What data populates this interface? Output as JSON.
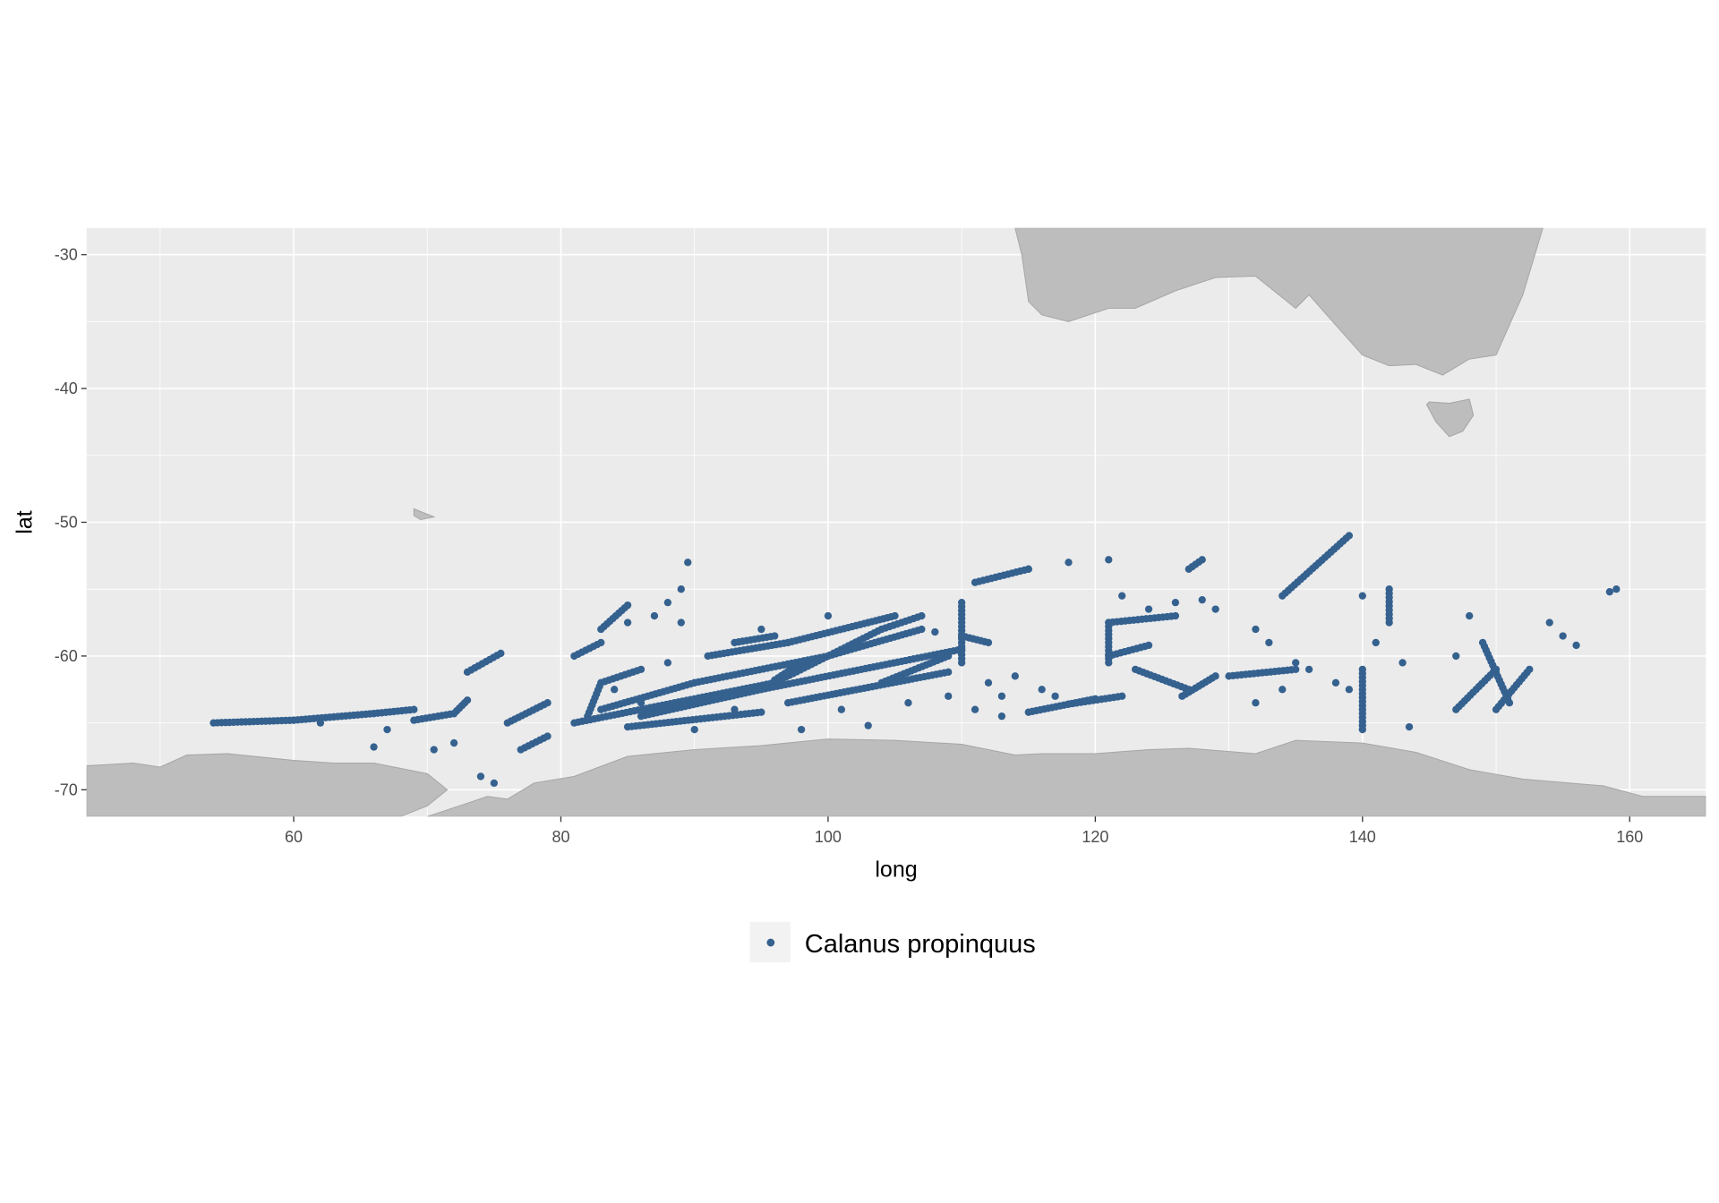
{
  "chart_data": {
    "type": "scatter",
    "xlabel": "long",
    "ylabel": "lat",
    "xlim": [
      44.5,
      165.7
    ],
    "ylim": [
      -72,
      -28
    ],
    "x_ticks": [
      60,
      80,
      100,
      120,
      140,
      160
    ],
    "y_ticks": [
      -30,
      -40,
      -50,
      -60,
      -70
    ],
    "x_tick_labels": [
      "60",
      "80",
      "100",
      "120",
      "140",
      "160"
    ],
    "y_tick_labels": [
      "-30",
      "-40",
      "-50",
      "-60",
      "-70"
    ],
    "grid": true,
    "panel_background": "#ebebeb",
    "land_color": "#bdbdbd",
    "land_outline": "#a6a6a6",
    "legend_position": "bottom",
    "series": [
      {
        "name": "Calanus propinquus",
        "color": "#35618f",
        "tracks": [
          [
            [
              54,
              -65.0
            ],
            [
              60,
              -64.8
            ],
            [
              66,
              -64.3
            ],
            [
              69,
              -64.0
            ]
          ],
          [
            [
              69,
              -64.8
            ],
            [
              72,
              -64.3
            ],
            [
              73,
              -63.3
            ]
          ],
          [
            [
              73,
              -61.2
            ],
            [
              75.5,
              -59.8
            ]
          ],
          [
            [
              76,
              -65.0
            ],
            [
              79,
              -63.5
            ]
          ],
          [
            [
              77,
              -67.0
            ],
            [
              79,
              -66.0
            ]
          ],
          [
            [
              81,
              -65.0
            ],
            [
              96,
              -62.0
            ],
            [
              104,
              -58.0
            ],
            [
              107,
              -57.0
            ]
          ],
          [
            [
              82,
              -64.5
            ],
            [
              83,
              -62.0
            ],
            [
              86,
              -61.0
            ]
          ],
          [
            [
              83,
              -64.0
            ],
            [
              90,
              -62.0
            ],
            [
              100,
              -60.0
            ],
            [
              107,
              -58.0
            ]
          ],
          [
            [
              85,
              -65.3
            ],
            [
              95,
              -64.2
            ]
          ],
          [
            [
              86,
              -64.5
            ],
            [
              95,
              -62.5
            ],
            [
              110,
              -59.5
            ]
          ],
          [
            [
              91,
              -60.0
            ],
            [
              97,
              -59.0
            ],
            [
              103,
              -57.5
            ],
            [
              105,
              -57.0
            ]
          ],
          [
            [
              96,
              -61.8
            ],
            [
              98,
              -60.5
            ]
          ],
          [
            [
              97,
              -63.5
            ],
            [
              109,
              -61.2
            ]
          ],
          [
            [
              104,
              -62.0
            ],
            [
              109,
              -60.0
            ]
          ],
          [
            [
              83,
              -58.0
            ],
            [
              85,
              -56.2
            ]
          ],
          [
            [
              81,
              -60.0
            ],
            [
              83,
              -59.0
            ]
          ],
          [
            [
              93,
              -59.0
            ],
            [
              96,
              -58.5
            ]
          ],
          [
            [
              110,
              -56.0
            ],
            [
              110,
              -60.5
            ]
          ],
          [
            [
              110,
              -58.5
            ],
            [
              112,
              -59.0
            ]
          ],
          [
            [
              111,
              -54.5
            ],
            [
              115,
              -53.5
            ]
          ],
          [
            [
              115,
              -64.2
            ],
            [
              120,
              -63.2
            ]
          ],
          [
            [
              118,
              -63.6
            ],
            [
              122,
              -63.0
            ]
          ],
          [
            [
              121,
              -60.5
            ],
            [
              121,
              -57.5
            ],
            [
              126,
              -57.0
            ]
          ],
          [
            [
              123,
              -61.0
            ],
            [
              127,
              -62.5
            ]
          ],
          [
            [
              121,
              -60.0
            ],
            [
              124,
              -59.2
            ]
          ],
          [
            [
              126.5,
              -63.0
            ],
            [
              129,
              -61.5
            ]
          ],
          [
            [
              127,
              -53.5
            ],
            [
              128,
              -52.8
            ]
          ],
          [
            [
              134,
              -55.5
            ],
            [
              139,
              -51.0
            ]
          ],
          [
            [
              140,
              -61.0
            ],
            [
              140,
              -65.5
            ]
          ],
          [
            [
              142,
              -55.0
            ],
            [
              142,
              -57.5
            ]
          ],
          [
            [
              147,
              -64.0
            ],
            [
              150,
              -61.0
            ]
          ],
          [
            [
              149,
              -59.0
            ],
            [
              151,
              -63.5
            ]
          ],
          [
            [
              150,
              -64.0
            ],
            [
              152.5,
              -61.0
            ]
          ],
          [
            [
              130,
              -61.5
            ],
            [
              135,
              -61.0
            ]
          ]
        ],
        "points": [
          [
            67,
            -65.5
          ],
          [
            70.5,
            -67.0
          ],
          [
            74,
            -69.0
          ],
          [
            75,
            -69.5
          ],
          [
            85,
            -57.5
          ],
          [
            87,
            -57.0
          ],
          [
            88,
            -56.0
          ],
          [
            89.5,
            -53.0
          ],
          [
            89,
            -55.0
          ],
          [
            89,
            -57.5
          ],
          [
            95,
            -58.0
          ],
          [
            100,
            -57.0
          ],
          [
            108,
            -58.2
          ],
          [
            115,
            -53.5
          ],
          [
            118,
            -53.0
          ],
          [
            122,
            -55.5
          ],
          [
            124,
            -56.5
          ],
          [
            126,
            -56.0
          ],
          [
            129,
            -56.5
          ],
          [
            132,
            -58.0
          ],
          [
            133,
            -59.0
          ],
          [
            135,
            -60.5
          ],
          [
            136,
            -61.0
          ],
          [
            138,
            -62.0
          ],
          [
            132,
            -63.5
          ],
          [
            134,
            -62.5
          ],
          [
            112,
            -62.0
          ],
          [
            114,
            -61.5
          ],
          [
            113,
            -63.0
          ],
          [
            116,
            -62.5
          ],
          [
            101,
            -64.0
          ],
          [
            103,
            -65.2
          ],
          [
            106,
            -63.5
          ],
          [
            98,
            -65.5
          ],
          [
            93,
            -64.0
          ],
          [
            88,
            -60.5
          ],
          [
            86,
            -63.5
          ],
          [
            84,
            -62.5
          ],
          [
            90,
            -65.5
          ],
          [
            72,
            -66.5
          ],
          [
            66,
            -66.8
          ],
          [
            62,
            -65.0
          ],
          [
            143.5,
            -65.3
          ],
          [
            139,
            -62.5
          ],
          [
            141,
            -59.0
          ],
          [
            143,
            -60.5
          ],
          [
            140,
            -55.5
          ],
          [
            148,
            -57.0
          ],
          [
            147,
            -60.0
          ],
          [
            154,
            -57.5
          ],
          [
            155,
            -58.5
          ],
          [
            156,
            -59.2
          ],
          [
            159,
            -55.0
          ],
          [
            158.5,
            -55.2
          ],
          [
            121,
            -52.8
          ],
          [
            128,
            -55.8
          ],
          [
            117,
            -63.0
          ],
          [
            113,
            -64.5
          ],
          [
            111,
            -64.0
          ],
          [
            109,
            -63.0
          ]
        ]
      }
    ],
    "land": [
      [
        [
          44.5,
          -72
        ],
        [
          44.5,
          -68.2
        ],
        [
          48,
          -68
        ],
        [
          50,
          -68.3
        ],
        [
          52,
          -67.4
        ],
        [
          55,
          -67.3
        ],
        [
          60,
          -67.8
        ],
        [
          63,
          -68.0
        ],
        [
          66,
          -68.0
        ],
        [
          70,
          -68.8
        ],
        [
          71.5,
          -70.0
        ],
        [
          70,
          -71.2
        ],
        [
          68,
          -72
        ]
      ],
      [
        [
          70,
          -72
        ],
        [
          73,
          -71.0
        ],
        [
          74.5,
          -70.5
        ],
        [
          76,
          -70.7
        ],
        [
          78,
          -69.5
        ],
        [
          81,
          -69.0
        ],
        [
          85,
          -67.5
        ],
        [
          90,
          -67.0
        ],
        [
          95,
          -66.7
        ],
        [
          100,
          -66.2
        ],
        [
          105,
          -66.3
        ],
        [
          110,
          -66.6
        ],
        [
          114,
          -67.4
        ],
        [
          116,
          -67.3
        ],
        [
          120,
          -67.3
        ],
        [
          124,
          -67.0
        ],
        [
          127,
          -66.9
        ],
        [
          132,
          -67.3
        ],
        [
          135,
          -66.3
        ],
        [
          140,
          -66.5
        ],
        [
          144,
          -67.2
        ],
        [
          148,
          -68.5
        ],
        [
          152,
          -69.2
        ],
        [
          158,
          -69.7
        ],
        [
          161,
          -70.5
        ],
        [
          165.7,
          -70.5
        ],
        [
          165.7,
          -72
        ]
      ],
      [
        [
          114,
          -28
        ],
        [
          114.5,
          -30
        ],
        [
          115,
          -33.5
        ],
        [
          116,
          -34.5
        ],
        [
          118,
          -35.0
        ],
        [
          121,
          -34.0
        ],
        [
          123,
          -34.0
        ],
        [
          126,
          -32.7
        ],
        [
          129,
          -31.7
        ],
        [
          132,
          -31.6
        ],
        [
          135,
          -34.0
        ],
        [
          136,
          -33.0
        ],
        [
          137.5,
          -34.7
        ],
        [
          140,
          -37.5
        ],
        [
          142,
          -38.3
        ],
        [
          144,
          -38.2
        ],
        [
          146,
          -39.0
        ],
        [
          148,
          -37.8
        ],
        [
          150,
          -37.5
        ],
        [
          152,
          -33.0
        ],
        [
          153.5,
          -28
        ]
      ],
      [
        [
          145,
          -41
        ],
        [
          146.5,
          -41.1
        ],
        [
          148,
          -40.8
        ],
        [
          148.3,
          -42.0
        ],
        [
          147.5,
          -43.2
        ],
        [
          146.5,
          -43.6
        ],
        [
          145.5,
          -42.5
        ],
        [
          144.8,
          -41.2
        ]
      ],
      [
        [
          69,
          -49
        ],
        [
          70,
          -49.4
        ],
        [
          70.5,
          -49.6
        ],
        [
          69.5,
          -49.8
        ],
        [
          69,
          -49.5
        ]
      ]
    ]
  }
}
